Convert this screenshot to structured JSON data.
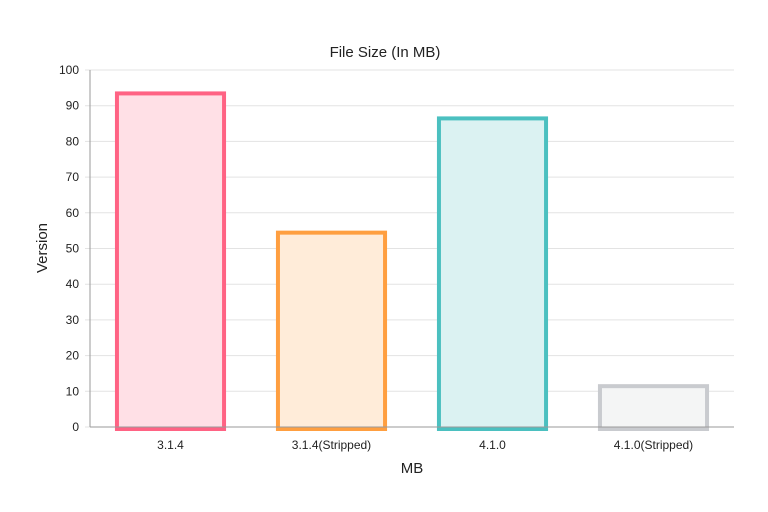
{
  "chart_data": {
    "type": "bar",
    "title": "File Size (In MB)",
    "xlabel": "MB",
    "ylabel": "Version",
    "categories": [
      "3.1.4",
      "3.1.4(Stripped)",
      "4.1.0",
      "4.1.0(Stripped)"
    ],
    "values": [
      94,
      55,
      87,
      12
    ],
    "ylim": [
      0,
      100
    ],
    "yticks": [
      "0",
      "10",
      "20",
      "30",
      "40",
      "50",
      "60",
      "70",
      "80",
      "90",
      "100"
    ],
    "grid": true,
    "legend": "none",
    "colors": {
      "border": [
        "#ff6384",
        "#ff9f40",
        "#4bc0c0",
        "#c9cbcf"
      ],
      "fill": [
        "#ffe0e6",
        "#ffecd9",
        "#dbf2f2",
        "#f4f5f5"
      ]
    }
  }
}
